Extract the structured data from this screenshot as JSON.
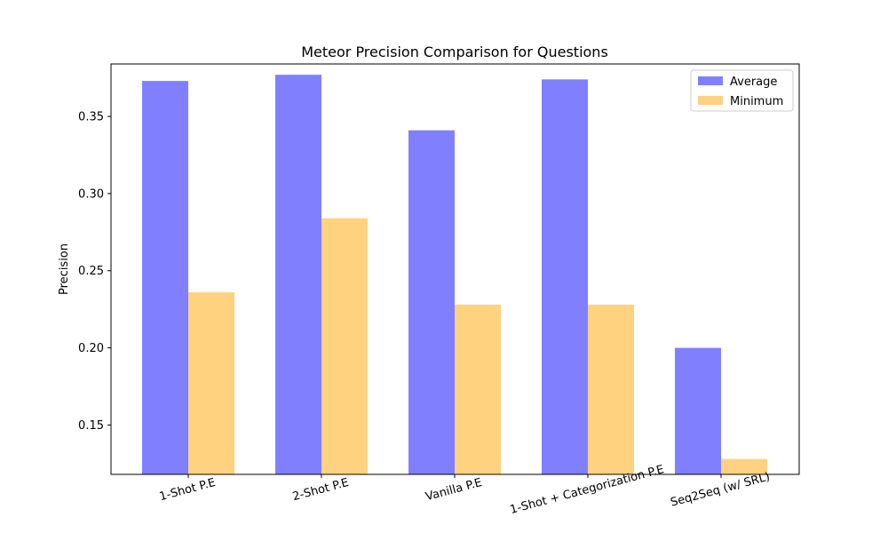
{
  "chart_data": {
    "type": "bar",
    "title": "Meteor Precision Comparison for Questions",
    "xlabel": "",
    "ylabel": "Precision",
    "categories": [
      "1-Shot P.E",
      "2-Shot P.E",
      "Vanilla P.E",
      "1-Shot + Categorization P.E",
      "Seq2Seq (w/ SRL)"
    ],
    "series": [
      {
        "name": "Average",
        "color": "#8080ff",
        "values": [
          0.373,
          0.377,
          0.341,
          0.374,
          0.2
        ]
      },
      {
        "name": "Minimum",
        "color": "#ffd280",
        "values": [
          0.236,
          0.284,
          0.228,
          0.228,
          0.128
        ]
      }
    ],
    "ylim": [
      0.118,
      0.384
    ],
    "yticks": [
      "0.15",
      "0.20",
      "0.25",
      "0.30",
      "0.35"
    ],
    "grid": false,
    "legend": "top-right"
  }
}
